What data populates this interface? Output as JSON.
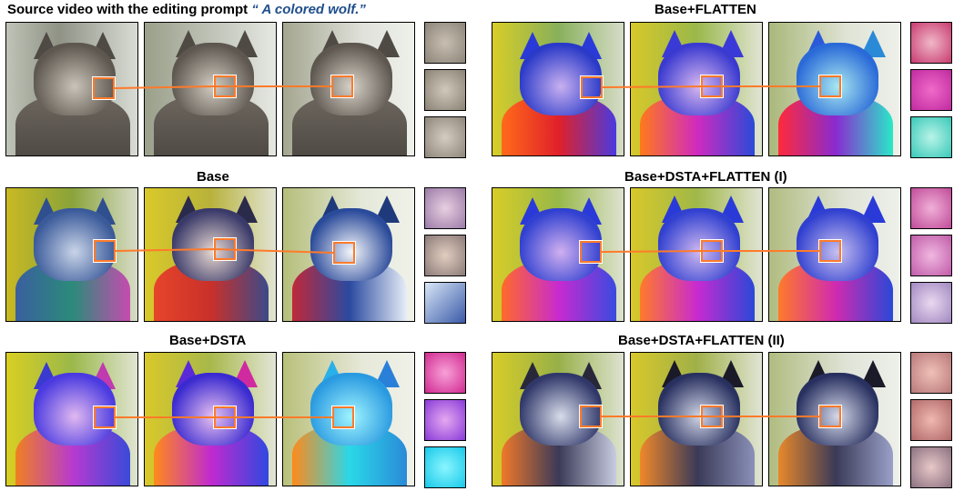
{
  "panels": [
    {
      "id": "source",
      "title_prefix": "Source video with the editing prompt ",
      "title_prompt": "“ A colored wolf.”",
      "palette": "gray"
    },
    {
      "id": "base",
      "title": "Base",
      "palette": "blue"
    },
    {
      "id": "base-dsta",
      "title": "Base+DSTA",
      "palette": "rainbow"
    },
    {
      "id": "base-flatten",
      "title": "Base+FLATTEN",
      "palette": "rainbow"
    },
    {
      "id": "base-dsta-flatten-1",
      "title": "Base+DSTA+FLATTEN (I)",
      "palette": "rainbow"
    },
    {
      "id": "base-dsta-flatten-2",
      "title": "Base+DSTA+FLATTEN (II)",
      "palette": "dark"
    }
  ],
  "colors": {
    "highlight": "#ff7a2a",
    "prompt_text": "#1f4e8c"
  }
}
